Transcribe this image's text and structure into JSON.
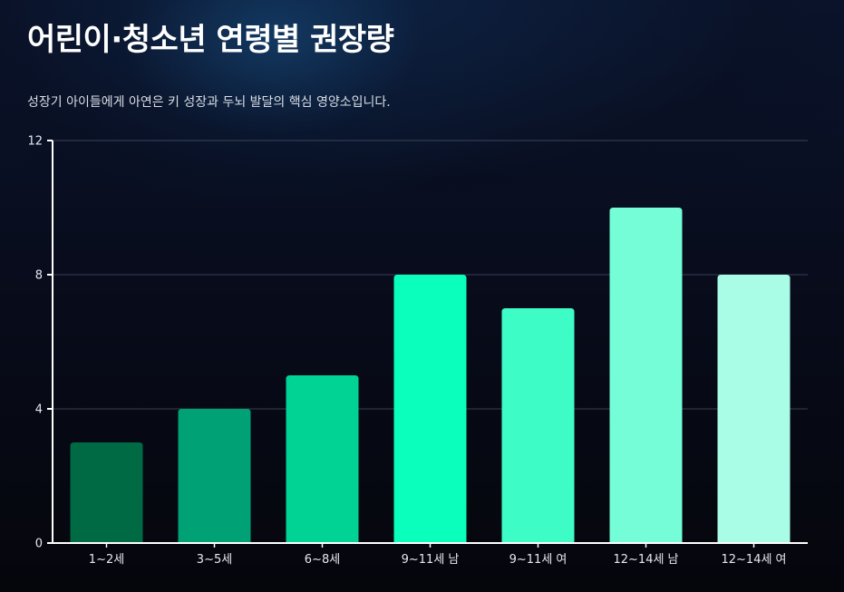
{
  "title": "어린이·청소년 연령별 권장량",
  "subtitle": "성장기 아이들에게 아연은 키 성장과 두뇌 발달의 핵심 영양소입니다.",
  "chart_data": {
    "type": "bar",
    "categories": [
      "1~2세",
      "3~5세",
      "6~8세",
      "9~11세 남",
      "9~11세 여",
      "12~14세 남",
      "12~14세 여"
    ],
    "values": [
      3,
      4,
      5,
      8,
      7,
      10,
      8
    ],
    "colors": [
      "#006a45",
      "#00a174",
      "#00d394",
      "#09ffbb",
      "#3dfcc6",
      "#74fdd6",
      "#a9fde6"
    ],
    "ylim": [
      0,
      12
    ],
    "yticks": [
      0,
      4,
      8,
      12
    ],
    "grid": true
  }
}
